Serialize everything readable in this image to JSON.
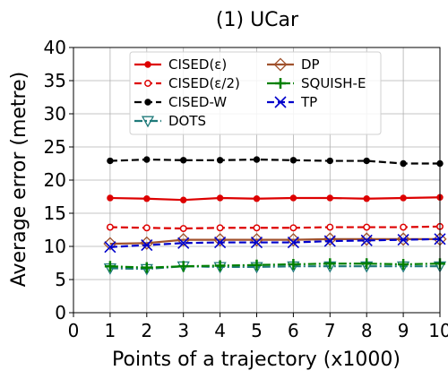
{
  "chart_data": {
    "type": "line",
    "title": "(1) UCar",
    "xlabel": "Points of a trajectory (x1000)",
    "ylabel": "Average error (metre)",
    "xlim": [
      0,
      10
    ],
    "ylim": [
      0,
      40
    ],
    "x_ticks": [
      0,
      1,
      2,
      3,
      4,
      5,
      6,
      7,
      8,
      9,
      10
    ],
    "y_ticks": [
      0,
      5,
      10,
      15,
      20,
      25,
      30,
      35,
      40
    ],
    "grid": true,
    "legend_position": "top",
    "x": [
      1,
      2,
      3,
      4,
      5,
      6,
      7,
      8,
      9,
      10
    ],
    "series": [
      {
        "name": "CISED(ε)",
        "color": "#dd0000",
        "marker": "filled-circle",
        "line": "solid",
        "values": [
          17.3,
          17.2,
          17.0,
          17.3,
          17.2,
          17.3,
          17.3,
          17.2,
          17.3,
          17.4
        ]
      },
      {
        "name": "CISED(ε/2)",
        "color": "#dd0000",
        "marker": "open-circle",
        "line": "dashed",
        "values": [
          12.9,
          12.8,
          12.7,
          12.8,
          12.8,
          12.8,
          12.9,
          12.9,
          12.9,
          13.0
        ]
      },
      {
        "name": "CISED-W",
        "color": "#000000",
        "marker": "filled-circle",
        "line": "dashed",
        "values": [
          22.9,
          23.1,
          23.0,
          23.0,
          23.1,
          23.0,
          22.9,
          22.9,
          22.5,
          22.5
        ]
      },
      {
        "name": "DOTS",
        "color": "#1f7a7a",
        "marker": "open-triangle-down",
        "line": "dashdot",
        "values": [
          6.7,
          6.6,
          7.0,
          6.9,
          6.9,
          7.0,
          7.0,
          7.0,
          7.0,
          7.0
        ]
      },
      {
        "name": "DP",
        "color": "#a0522d",
        "marker": "open-diamond",
        "line": "solid",
        "values": [
          10.4,
          10.5,
          11.0,
          11.0,
          11.0,
          11.0,
          11.1,
          11.1,
          11.1,
          11.1
        ]
      },
      {
        "name": "SQUISH-E",
        "color": "#008000",
        "marker": "plus",
        "line": "dashdot",
        "values": [
          7.0,
          6.8,
          7.0,
          7.1,
          7.2,
          7.3,
          7.4,
          7.4,
          7.3,
          7.4
        ]
      },
      {
        "name": "TP",
        "color": "#0000cc",
        "marker": "x",
        "line": "dashed",
        "values": [
          9.9,
          10.2,
          10.5,
          10.6,
          10.6,
          10.6,
          10.8,
          10.9,
          11.0,
          11.1
        ]
      }
    ]
  }
}
